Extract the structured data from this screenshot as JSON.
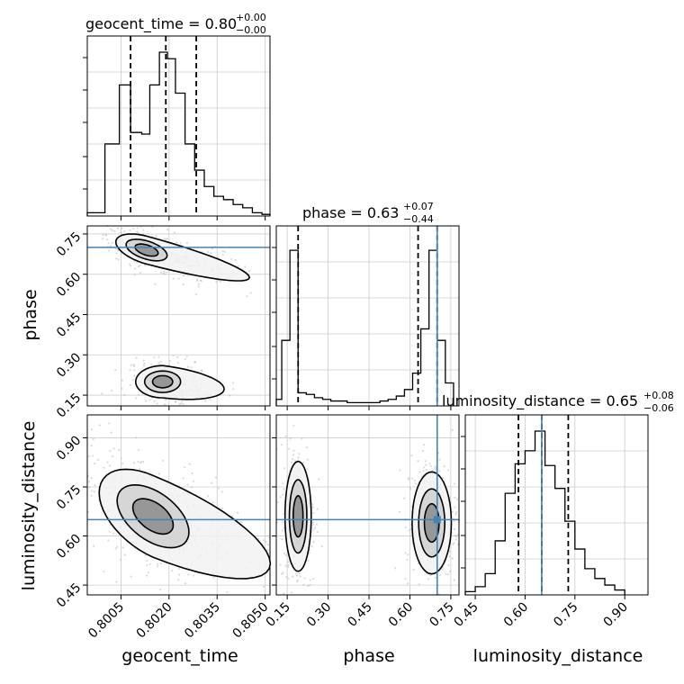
{
  "chart_data": {
    "type": "corner",
    "parameters": [
      "geocent_time",
      "phase",
      "luminosity_distance"
    ],
    "truth": {
      "geocent_time": null,
      "phase": 0.7,
      "luminosity_distance": 0.65
    },
    "ranges": {
      "geocent_time": [
        0.79945,
        0.80515
      ],
      "phase": [
        0.11,
        0.78
      ],
      "luminosity_distance": [
        0.42,
        0.97
      ]
    },
    "ticks": {
      "geocent_time": [
        0.8005,
        0.802,
        0.8035,
        0.805
      ],
      "phase": [
        0.15,
        0.3,
        0.45,
        0.6,
        0.75
      ],
      "luminosity_distance": [
        0.45,
        0.6,
        0.75,
        0.9
      ]
    },
    "tick_labels": {
      "geocent_time": [
        "0.8005",
        "0.8020",
        "0.8035",
        "0.8050"
      ],
      "phase": [
        "0.15",
        "0.30",
        "0.45",
        "0.60",
        "0.75"
      ],
      "luminosity_distance": [
        "0.45",
        "0.60",
        "0.75",
        "0.90"
      ]
    },
    "titles": {
      "geocent_time": {
        "label": "geocent_time = 0.80",
        "plus": "+0.00",
        "minus": "−0.00"
      },
      "phase": {
        "label": "phase = 0.63",
        "plus": "+0.07",
        "minus": "−0.44"
      },
      "luminosity_distance": {
        "label": "luminosity_distance = 0.65",
        "plus": "+0.08",
        "minus": "−0.06"
      }
    },
    "quantiles": {
      "geocent_time": [
        0.8008,
        0.8019,
        0.80285
      ],
      "phase": [
        0.19,
        0.63,
        0.7
      ],
      "luminosity_distance": [
        0.58,
        0.65,
        0.73
      ]
    },
    "histograms": {
      "geocent_time": {
        "edges": [
          0.79945,
          0.8,
          0.80045,
          0.8008,
          0.80115,
          0.8014,
          0.8017,
          0.80195,
          0.8022,
          0.8025,
          0.8028,
          0.8031,
          0.8034,
          0.8037,
          0.804,
          0.8043,
          0.8046,
          0.8049,
          0.80515
        ],
        "counts": [
          0.02,
          0.44,
          0.8,
          0.51,
          0.5,
          0.8,
          1.0,
          0.96,
          0.75,
          0.44,
          0.28,
          0.18,
          0.12,
          0.1,
          0.07,
          0.05,
          0.02,
          0.01
        ]
      },
      "phase": {
        "edges": [
          0.11,
          0.13,
          0.16,
          0.19,
          0.22,
          0.25,
          0.28,
          0.31,
          0.34,
          0.37,
          0.4,
          0.43,
          0.46,
          0.49,
          0.52,
          0.55,
          0.58,
          0.61,
          0.64,
          0.67,
          0.7,
          0.73,
          0.76
        ],
        "counts": [
          0.04,
          0.4,
          0.95,
          0.08,
          0.07,
          0.05,
          0.04,
          0.03,
          0.03,
          0.02,
          0.02,
          0.02,
          0.02,
          0.03,
          0.04,
          0.06,
          0.1,
          0.2,
          0.47,
          0.95,
          0.4,
          0.14
        ]
      },
      "luminosity_distance": {
        "edges": [
          0.42,
          0.45,
          0.48,
          0.51,
          0.54,
          0.57,
          0.6,
          0.63,
          0.66,
          0.69,
          0.72,
          0.75,
          0.78,
          0.81,
          0.84,
          0.87,
          0.9
        ],
        "counts": [
          0.02,
          0.05,
          0.13,
          0.33,
          0.62,
          0.8,
          0.88,
          1.0,
          0.79,
          0.65,
          0.45,
          0.28,
          0.16,
          0.1,
          0.06,
          0.03
        ]
      }
    },
    "grid": true,
    "colors": {
      "truth": "#4682b4",
      "line": "#000000",
      "samples": "#bbbbbb",
      "grid": "#cccccc"
    }
  }
}
